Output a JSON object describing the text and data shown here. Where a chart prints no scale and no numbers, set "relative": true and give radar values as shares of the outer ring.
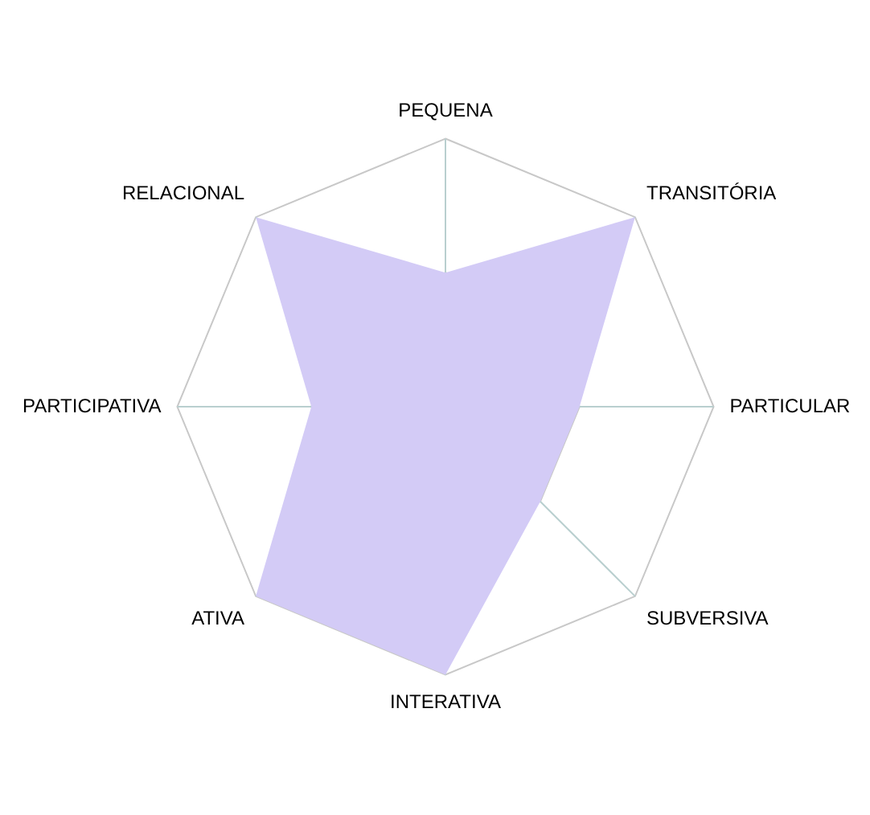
{
  "chart_data": {
    "type": "radar",
    "relative": true,
    "categories": [
      "PEQUENA",
      "TRANSITÓRIA",
      "PARTICULAR",
      "SUBVERSIVA",
      "INTERATIVA",
      "ATIVA",
      "PARTICIPATIVA",
      "RELACIONAL"
    ],
    "series": [
      {
        "color": "#d3cbf6",
        "values": [
          0.5,
          1,
          0.5,
          0.5,
          1,
          1,
          0.5,
          1
        ]
      }
    ],
    "legend": false,
    "grid": true
  }
}
